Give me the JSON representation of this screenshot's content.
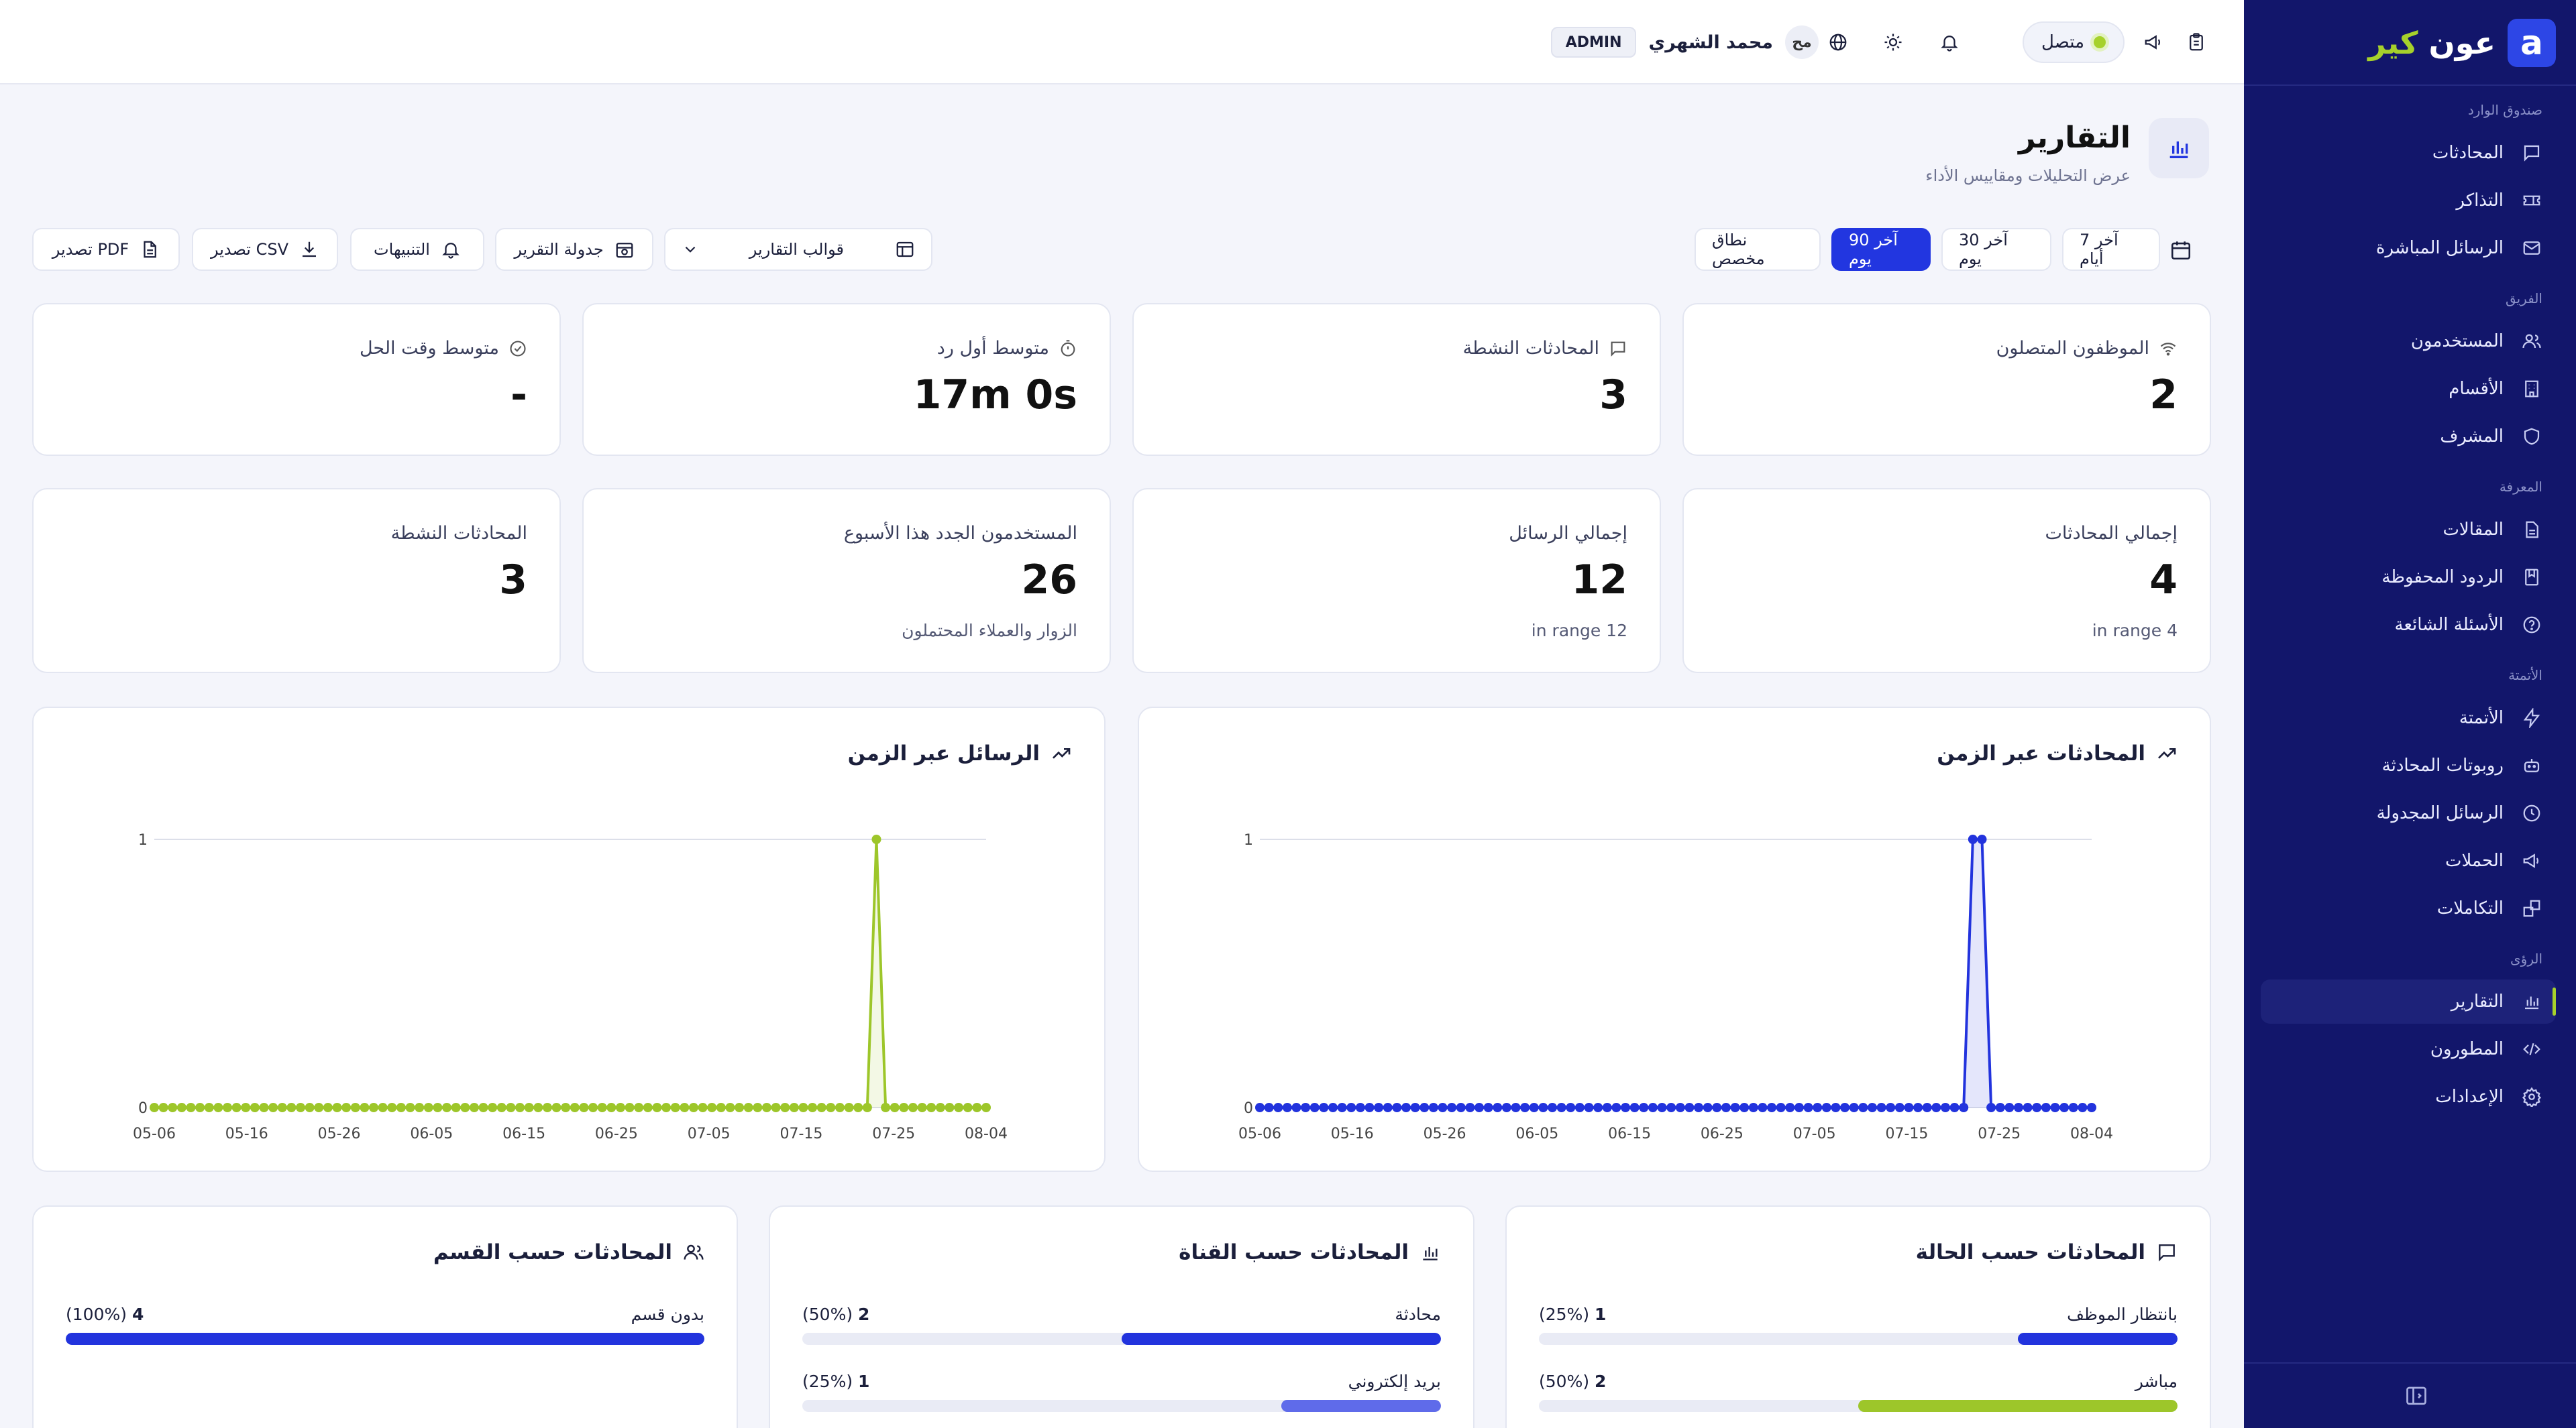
{
  "sidebar": {
    "brand_part1": "عون",
    "brand_part2": "كير",
    "sections": [
      {
        "title": "صندوق الوارد",
        "items": [
          {
            "label": "المحادثات",
            "icon": "chat-icon"
          },
          {
            "label": "التذاكر",
            "icon": "ticket-icon"
          },
          {
            "label": "الرسائل المباشرة",
            "icon": "mail-icon"
          }
        ]
      },
      {
        "title": "الفريق",
        "items": [
          {
            "label": "المستخدمون",
            "icon": "users-icon"
          },
          {
            "label": "الأقسام",
            "icon": "building-icon"
          },
          {
            "label": "المشرف",
            "icon": "shield-icon"
          }
        ]
      },
      {
        "title": "المعرفة",
        "items": [
          {
            "label": "المقالات",
            "icon": "document-icon"
          },
          {
            "label": "الردود المحفوظة",
            "icon": "bookmark-icon"
          },
          {
            "label": "الأسئلة الشائعة",
            "icon": "question-icon"
          }
        ]
      },
      {
        "title": "الأتمتة",
        "items": [
          {
            "label": "الأتمتة",
            "icon": "bolt-icon"
          },
          {
            "label": "روبوتات المحادثة",
            "icon": "bot-icon"
          },
          {
            "label": "الرسائل المجدولة",
            "icon": "clock-icon"
          },
          {
            "label": "الحملات",
            "icon": "megaphone-icon"
          },
          {
            "label": "التكاملات",
            "icon": "puzzle-icon"
          }
        ]
      },
      {
        "title": "الرؤى",
        "items": [
          {
            "label": "التقارير",
            "icon": "bar-chart-icon"
          },
          {
            "label": "المطورون",
            "icon": "code-icon"
          },
          {
            "label": "الإعدادات",
            "icon": "gear-icon"
          }
        ]
      }
    ]
  },
  "topbar": {
    "status": "متصل",
    "user_initials": "مح",
    "user_name": "محمد الشهري",
    "role": "ADMIN"
  },
  "header": {
    "title": "التقارير",
    "subtitle": "عرض التحليلات ومقاييس الأداء"
  },
  "filters": {
    "ranges": [
      "آخر 7 أيام",
      "آخر 30 يوم",
      "آخر 90 يوم",
      "نطاق مخصص"
    ],
    "selected": "آخر 90 يوم",
    "templates": "قوالب التقارير",
    "schedule": "جدولة التقرير",
    "alerts": "التنبيهات",
    "export_csv": "تصدير CSV",
    "export_pdf": "تصدير PDF"
  },
  "stats_row1": [
    {
      "label": "الموظفون المتصلون",
      "value": "2",
      "icon": "wifi-icon"
    },
    {
      "label": "المحادثات النشطة",
      "value": "3",
      "icon": "chat-icon"
    },
    {
      "label": "متوسط أول رد",
      "value": "17m 0s",
      "icon": "timer-icon"
    },
    {
      "label": "متوسط وقت الحل",
      "value": "-",
      "icon": "check-circle-icon"
    }
  ],
  "stats_row2": [
    {
      "label": "إجمالي المحادثات",
      "value": "4",
      "sub": "in range 4"
    },
    {
      "label": "إجمالي الرسائل",
      "value": "12",
      "sub": "in range 12"
    },
    {
      "label": "المستخدمون الجدد هذا الأسبوع",
      "value": "26",
      "sub": "الزوار والعملاء المحتملون"
    },
    {
      "label": "المحادثات النشطة",
      "value": "3",
      "sub": ""
    }
  ],
  "chart_data": [
    {
      "type": "line",
      "title": "المحادثات عبر الزمن",
      "color": "#2233dd",
      "x_ticks": [
        "05-06",
        "05-16",
        "05-26",
        "06-05",
        "06-15",
        "06-25",
        "07-05",
        "07-15",
        "07-25",
        "08-04"
      ],
      "y_ticks": [
        "0",
        "1"
      ],
      "ylim": [
        0,
        1
      ],
      "x_range": [
        "05-06",
        "08-06"
      ],
      "values": [
        0,
        0,
        0,
        0,
        0,
        0,
        0,
        0,
        0,
        0,
        0,
        0,
        0,
        0,
        0,
        0,
        0,
        0,
        0,
        0,
        0,
        0,
        0,
        0,
        0,
        0,
        0,
        0,
        0,
        0,
        0,
        0,
        0,
        0,
        0,
        0,
        0,
        0,
        0,
        0,
        0,
        0,
        0,
        0,
        0,
        0,
        0,
        0,
        0,
        0,
        0,
        0,
        0,
        0,
        0,
        0,
        0,
        0,
        0,
        0,
        0,
        0,
        0,
        0,
        0,
        0,
        0,
        0,
        0,
        0,
        0,
        0,
        0,
        0,
        0,
        0,
        0,
        0,
        1,
        1,
        0,
        0,
        0,
        0,
        0,
        0,
        0,
        0,
        0,
        0,
        0,
        0
      ]
    },
    {
      "type": "line",
      "title": "الرسائل عبر الزمن",
      "color": "#9dc62a",
      "x_ticks": [
        "05-06",
        "05-16",
        "05-26",
        "06-05",
        "06-15",
        "06-25",
        "07-05",
        "07-15",
        "07-25",
        "08-04"
      ],
      "y_ticks": [
        "0",
        "1"
      ],
      "ylim": [
        0,
        1
      ],
      "x_range": [
        "05-06",
        "08-06"
      ],
      "values": [
        0,
        0,
        0,
        0,
        0,
        0,
        0,
        0,
        0,
        0,
        0,
        0,
        0,
        0,
        0,
        0,
        0,
        0,
        0,
        0,
        0,
        0,
        0,
        0,
        0,
        0,
        0,
        0,
        0,
        0,
        0,
        0,
        0,
        0,
        0,
        0,
        0,
        0,
        0,
        0,
        0,
        0,
        0,
        0,
        0,
        0,
        0,
        0,
        0,
        0,
        0,
        0,
        0,
        0,
        0,
        0,
        0,
        0,
        0,
        0,
        0,
        0,
        0,
        0,
        0,
        0,
        0,
        0,
        0,
        0,
        0,
        0,
        0,
        0,
        0,
        0,
        0,
        0,
        0,
        1,
        0,
        0,
        0,
        0,
        0,
        0,
        0,
        0,
        0,
        0,
        0,
        0
      ]
    }
  ],
  "breakdowns": [
    {
      "title": "المحادثات حسب الحالة",
      "icon": "chat-icon",
      "rows": [
        {
          "label": "بانتظار الموظف",
          "count": "1",
          "pct": "(25%)",
          "fraction": 0.25,
          "color": "#2233dd"
        },
        {
          "label": "مباشر",
          "count": "2",
          "pct": "(50%)",
          "fraction": 0.5,
          "color": "#9dc62a"
        }
      ]
    },
    {
      "title": "المحادثات حسب القناة",
      "icon": "bar-chart-icon",
      "rows": [
        {
          "label": "محادثة",
          "count": "2",
          "pct": "(50%)",
          "fraction": 0.5,
          "color": "#2233dd"
        },
        {
          "label": "بريد إلكتروني",
          "count": "1",
          "pct": "(25%)",
          "fraction": 0.25,
          "color": "#5f6bea"
        }
      ]
    },
    {
      "title": "المحادثات حسب القسم",
      "icon": "users-icon",
      "rows": [
        {
          "label": "بدون قسم",
          "count": "4",
          "pct": "(100%)",
          "fraction": 1.0,
          "color": "#2233dd"
        }
      ]
    }
  ]
}
